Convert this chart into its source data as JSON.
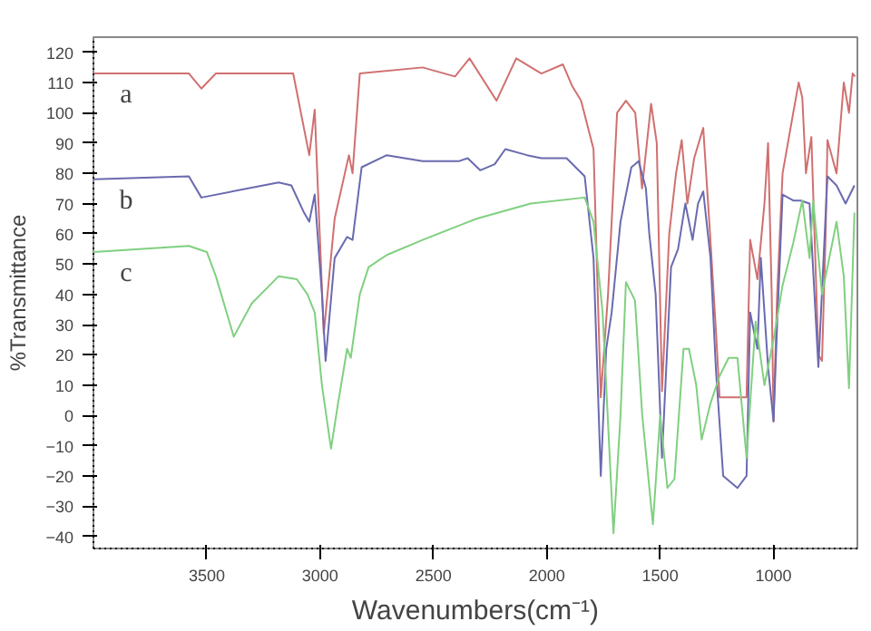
{
  "chart_data": {
    "type": "line",
    "xlabel": "Wavenumbers(cm⁻¹)",
    "ylabel": "%Transmittance",
    "xlim": [
      4000,
      630
    ],
    "xticks": [
      3500,
      3000,
      2500,
      2000,
      1500,
      1000
    ],
    "ylim": [
      -44,
      125
    ],
    "yticks": [
      -40,
      -30,
      -20,
      -10,
      0,
      10,
      20,
      30,
      40,
      50,
      60,
      70,
      80,
      90,
      100,
      110,
      120
    ],
    "grid": false,
    "marker": "none",
    "line_style": "solid",
    "annotations": [
      "a",
      "b",
      "c"
    ],
    "series": [
      {
        "color": "#d07070",
        "x": [
          4000,
          3579,
          3524,
          3460,
          3119,
          3048,
          3024,
          2984,
          2936,
          2873,
          2857,
          2825,
          2548,
          2405,
          2341,
          2222,
          2135,
          2024,
          1929,
          1889,
          1849,
          1794,
          1762,
          1730,
          1690,
          1651,
          1610,
          1580,
          1540,
          1515,
          1492,
          1460,
          1430,
          1405,
          1380,
          1350,
          1310,
          1280,
          1254,
          1238,
          1159,
          1119,
          1103,
          1071,
          1040,
          1024,
          1008,
          1000,
          984,
          960,
          913,
          889,
          873,
          857,
          833,
          802,
          786,
          770,
          762,
          722,
          690,
          667,
          651,
          640
        ],
        "values": [
          113,
          113,
          108,
          113,
          113,
          86,
          101,
          27,
          65,
          86,
          80,
          113,
          115,
          112,
          118,
          104,
          118,
          113,
          116,
          109,
          104,
          88,
          6,
          40,
          100,
          104,
          100,
          75,
          103,
          90,
          8,
          60,
          80,
          91,
          70,
          85,
          95,
          60,
          28,
          6,
          6,
          6,
          58,
          45,
          70,
          90,
          40,
          -2,
          40,
          80,
          100,
          110,
          105,
          80,
          92,
          20,
          18,
          60,
          91,
          80,
          110,
          100,
          113,
          112
        ]
      },
      {
        "color": "#6a6ab0",
        "x": [
          4000,
          3579,
          3524,
          3183,
          3127,
          3071,
          3048,
          3024,
          2992,
          2976,
          2936,
          2881,
          2857,
          2817,
          2706,
          2548,
          2389,
          2349,
          2294,
          2230,
          2183,
          2087,
          2024,
          1913,
          1833,
          1794,
          1762,
          1738,
          1714,
          1675,
          1627,
          1595,
          1563,
          1548,
          1520,
          1492,
          1452,
          1421,
          1389,
          1357,
          1333,
          1310,
          1278,
          1254,
          1222,
          1159,
          1119,
          1103,
          1071,
          1056,
          1024,
          1000,
          984,
          960,
          913,
          881,
          841,
          802,
          762,
          722,
          682,
          643
        ],
        "values": [
          78,
          79,
          72,
          77,
          76,
          67,
          64,
          73,
          40,
          18,
          52,
          59,
          58,
          82,
          86,
          84,
          84,
          85,
          81,
          83,
          88,
          86,
          85,
          85,
          79,
          52,
          -20,
          22,
          34,
          64,
          82,
          84,
          75,
          60,
          40,
          -14,
          49,
          55,
          70,
          58,
          70,
          74,
          52,
          15,
          -20,
          -24,
          -20,
          34,
          22,
          52,
          16,
          -2,
          30,
          73,
          71,
          71,
          70,
          16,
          79,
          76,
          70,
          76
        ]
      },
      {
        "color": "#80d080",
        "x": [
          4000,
          3579,
          3500,
          3460,
          3381,
          3302,
          3183,
          3103,
          3056,
          3024,
          2992,
          2952,
          2921,
          2881,
          2865,
          2825,
          2786,
          2706,
          2548,
          2310,
          2071,
          1833,
          1794,
          1754,
          1706,
          1675,
          1651,
          1611,
          1579,
          1532,
          1500,
          1468,
          1437,
          1397,
          1373,
          1341,
          1317,
          1278,
          1238,
          1198,
          1159,
          1119,
          1079,
          1040,
          1000,
          960,
          913,
          873,
          841,
          825,
          786,
          762,
          722,
          690,
          667,
          643
        ],
        "values": [
          54,
          56,
          54,
          46,
          26,
          37,
          46,
          45,
          40,
          34,
          10,
          -11,
          4,
          22,
          19,
          40,
          49,
          53,
          58,
          65,
          70,
          72,
          64,
          34,
          -39,
          0,
          44,
          38,
          0,
          -36,
          0,
          -24,
          -21,
          22,
          22,
          10,
          -8,
          4,
          13,
          19,
          19,
          -14,
          31,
          10,
          25,
          43,
          57,
          71,
          52,
          71,
          40,
          49,
          64,
          46,
          9,
          67
        ]
      }
    ]
  }
}
